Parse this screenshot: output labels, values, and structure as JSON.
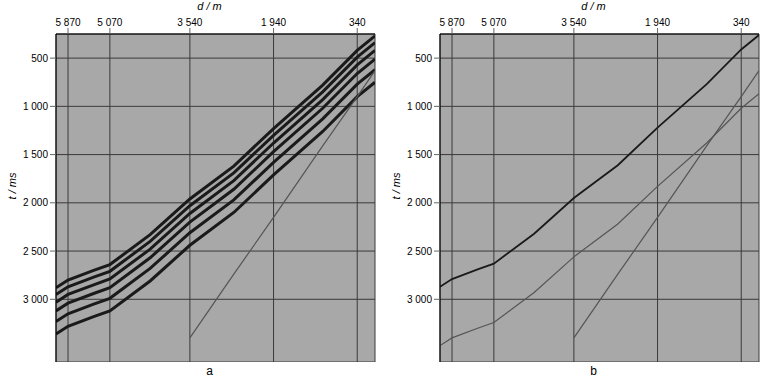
{
  "chart_data": [
    {
      "type": "line",
      "title": "a",
      "x_label": "d / m",
      "y_label": "t / ms",
      "x": [
        0,
        340,
        1000,
        1940,
        2700,
        3540,
        4300,
        5070,
        5380,
        5870,
        6100
      ],
      "xlim": [
        6100,
        0
      ],
      "xticks": [
        {
          "value": 5870,
          "label": "5 870"
        },
        {
          "value": 5070,
          "label": "5 070"
        },
        {
          "value": 3540,
          "label": "3 540"
        },
        {
          "value": 1940,
          "label": "1 940"
        },
        340
      ],
      "ylim": [
        250,
        3650
      ],
      "yticks": [
        500,
        {
          "value": 1000,
          "label": "1 000"
        },
        {
          "value": 1500,
          "label": "1 500"
        },
        {
          "value": 2000,
          "label": "2 000"
        },
        {
          "value": 2500,
          "label": "2 500"
        },
        {
          "value": 3000,
          "label": "3 000"
        }
      ],
      "grid": true,
      "series": [
        {
          "color": "#1a1a1a",
          "values": [
            270,
            420,
            780,
            1230,
            1620,
            1960,
            2330,
            2640,
            2700,
            2800,
            2880
          ]
        },
        {
          "color": "#1a1a1a",
          "values": [
            340,
            490,
            850,
            1300,
            1690,
            2030,
            2400,
            2710,
            2770,
            2870,
            2950
          ]
        },
        {
          "color": "#1a1a1a",
          "values": [
            420,
            570,
            930,
            1380,
            1770,
            2110,
            2480,
            2790,
            2850,
            2950,
            3030
          ]
        },
        {
          "color": "#1a1a1a",
          "values": [
            510,
            660,
            1020,
            1470,
            1860,
            2200,
            2570,
            2880,
            2940,
            3040,
            3120
          ]
        },
        {
          "color": "#1a1a1a",
          "values": [
            620,
            770,
            1130,
            1580,
            1970,
            2310,
            2680,
            2990,
            3050,
            3150,
            3230
          ]
        },
        {
          "color": "#1a1a1a",
          "values": [
            750,
            900,
            1260,
            1710,
            2100,
            2440,
            2810,
            3120,
            3180,
            3280,
            3360
          ]
        },
        {
          "color": "#555555",
          "values": [
            630,
            900,
            1410,
            2150,
            2740,
            3400,
            null,
            null,
            null,
            null,
            null
          ]
        }
      ]
    },
    {
      "type": "line",
      "title": "b",
      "x_label": "d / m",
      "y_label": "t / ms",
      "x": [
        0,
        340,
        1000,
        1940,
        2700,
        3540,
        4300,
        5070,
        5380,
        5870,
        6100
      ],
      "xlim": [
        6100,
        0
      ],
      "xticks": [
        {
          "value": 5870,
          "label": "5 870"
        },
        {
          "value": 5070,
          "label": "5 070"
        },
        {
          "value": 3540,
          "label": "3 540"
        },
        {
          "value": 1940,
          "label": "1 940"
        },
        340
      ],
      "ylim": [
        250,
        3650
      ],
      "yticks": [
        500,
        {
          "value": 1000,
          "label": "1 000"
        },
        {
          "value": 1500,
          "label": "1 500"
        },
        {
          "value": 2000,
          "label": "2 000"
        },
        {
          "value": 2500,
          "label": "2 500"
        },
        {
          "value": 3000,
          "label": "3 000"
        }
      ],
      "grid": true,
      "series": [
        {
          "color": "#1a1a1a",
          "values": [
            260,
            410,
            770,
            1220,
            1610,
            1950,
            2320,
            2630,
            2690,
            2790,
            2870
          ]
        },
        {
          "color": "#555555",
          "values": [
            630,
            900,
            1410,
            2150,
            2740,
            3400,
            null,
            null,
            null,
            null,
            null
          ]
        },
        {
          "color": "#555555",
          "values": [
            870,
            1020,
            1380,
            1830,
            2220,
            2560,
            2930,
            3240,
            3300,
            3400,
            3480
          ]
        }
      ]
    }
  ]
}
